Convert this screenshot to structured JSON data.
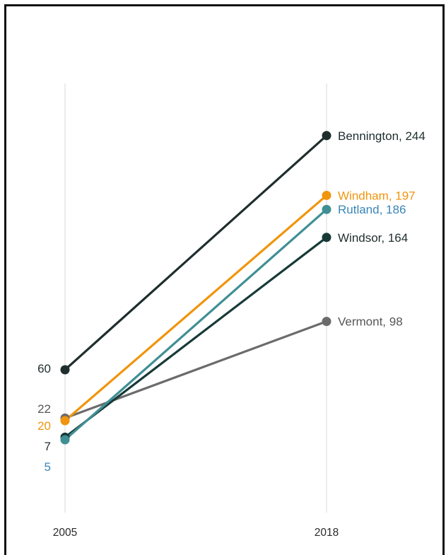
{
  "chart_data": {
    "type": "line",
    "x": [
      "2005",
      "2018"
    ],
    "series": [
      {
        "name": "Bennington",
        "values": [
          60,
          244
        ],
        "color": "#1f2d2d",
        "start_label": "60",
        "end_label": "Bennington, 244",
        "label_color": "#1f2d2d"
      },
      {
        "name": "Windham",
        "values": [
          20,
          197
        ],
        "color": "#f0950d",
        "start_label": "20",
        "end_label": "Windham, 197",
        "label_color": "#f0950d"
      },
      {
        "name": "Rutland",
        "values": [
          5,
          186
        ],
        "color": "#3f8f94",
        "start_label": "5",
        "end_label": "Rutland, 186",
        "label_color": "#3a86b8"
      },
      {
        "name": "Windsor",
        "values": [
          7,
          164
        ],
        "color": "#173a37",
        "start_label": "7",
        "end_label": "Windsor, 164",
        "label_color": "#1f2d2d"
      },
      {
        "name": "Vermont",
        "values": [
          22,
          98
        ],
        "color": "#6b6b6b",
        "start_label": "22",
        "end_label": "Vermont, 98",
        "label_color": "#555555"
      }
    ],
    "ylim": [
      0,
      260
    ],
    "grid": "vertical-only",
    "title": "",
    "xlabel": "",
    "ylabel": ""
  }
}
